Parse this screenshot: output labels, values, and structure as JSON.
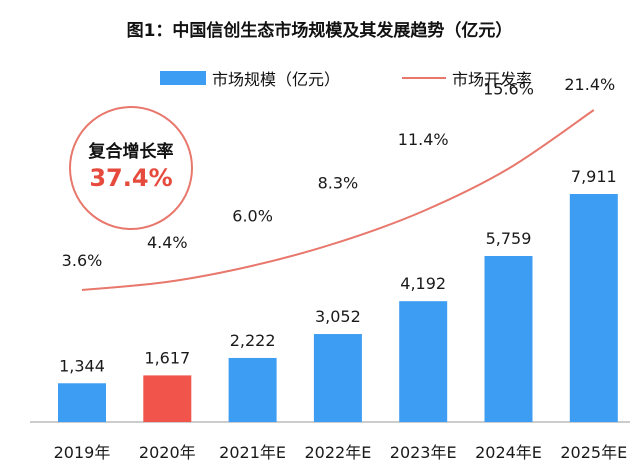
{
  "chart_data": {
    "type": "bar",
    "title": "图1：中国信创生态市场规模及其发展趋势（亿元）",
    "categories": [
      "2019年",
      "2020年",
      "2021年E",
      "2022年E",
      "2023年E",
      "2024年E",
      "2025年E"
    ],
    "series": [
      {
        "name": "市场规模（亿元）",
        "type": "bar",
        "values": [
          1344,
          1617,
          2222,
          3052,
          4192,
          5759,
          7911
        ],
        "value_labels": [
          "1,344",
          "1,617",
          "2,222",
          "3,052",
          "4,192",
          "5,759",
          "7,911"
        ],
        "color": "#3d9df2",
        "highlight_color": "#f0544a",
        "highlight_index": 1
      },
      {
        "name": "市场开发率",
        "type": "line",
        "values": [
          3.6,
          4.4,
          6.0,
          8.3,
          11.4,
          15.6,
          21.4
        ],
        "value_labels": [
          "3.6%",
          "4.4%",
          "6.0%",
          "8.3%",
          "11.4%",
          "15.6%",
          "21.4%"
        ],
        "color": "#e8776c"
      }
    ],
    "legend": "top",
    "grid": false,
    "annotation": {
      "label": "复合增长率",
      "value": "37.4%"
    }
  }
}
